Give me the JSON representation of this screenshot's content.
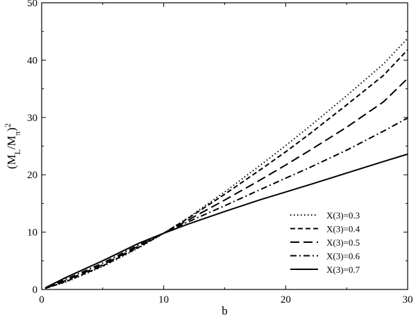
{
  "chart_data": {
    "type": "line",
    "xlabel": "b",
    "ylabel_parts": {
      "open": "(M",
      "sub1": "L",
      "mid": "/M",
      "sub2": "π",
      "close": ")",
      "sup": "2"
    },
    "xlim": [
      0,
      30
    ],
    "ylim": [
      0,
      50
    ],
    "xticks": [
      0,
      10,
      20,
      30
    ],
    "yticks": [
      0,
      10,
      20,
      30,
      40,
      50
    ],
    "grid": false,
    "legend_position": "bottom-right",
    "series": [
      {
        "name": "X(3)=0.3",
        "dash": "dotted",
        "x": [
          0.3,
          2,
          5,
          8,
          10,
          12,
          15,
          18,
          20,
          22,
          25,
          28,
          30
        ],
        "y": [
          0.2,
          1.3,
          4.0,
          7.3,
          9.8,
          12.5,
          17.0,
          21.8,
          25.1,
          28.5,
          33.8,
          39.3,
          43.8
        ]
      },
      {
        "name": "X(3)=0.4",
        "dash": "dashed",
        "x": [
          0.3,
          2,
          5,
          8,
          10,
          12,
          15,
          18,
          20,
          22,
          25,
          28,
          30
        ],
        "y": [
          0.2,
          1.4,
          4.1,
          7.4,
          9.8,
          12.4,
          16.6,
          21.0,
          24.0,
          27.2,
          32.2,
          37.3,
          41.8
        ]
      },
      {
        "name": "X(3)=0.5",
        "dash": "long-dashed",
        "x": [
          0.3,
          2,
          5,
          8,
          10,
          12,
          15,
          18,
          20,
          22,
          25,
          28,
          30
        ],
        "y": [
          0.2,
          1.6,
          4.3,
          7.6,
          9.8,
          12.1,
          15.6,
          19.2,
          21.7,
          24.3,
          28.3,
          32.7,
          36.8
        ]
      },
      {
        "name": "X(3)=0.6",
        "dash": "dash-dot",
        "x": [
          0.3,
          2,
          5,
          8,
          10,
          12,
          15,
          18,
          20,
          22,
          25,
          28,
          30
        ],
        "y": [
          0.2,
          1.8,
          4.6,
          7.8,
          9.8,
          11.8,
          14.6,
          17.5,
          19.4,
          21.3,
          24.3,
          27.6,
          29.9
        ]
      },
      {
        "name": "X(3)=0.7",
        "dash": "solid",
        "x": [
          0.3,
          2,
          5,
          8,
          10,
          12,
          15,
          18,
          20,
          22,
          25,
          28,
          30
        ],
        "y": [
          0.3,
          2.1,
          5.0,
          8.1,
          9.8,
          11.4,
          13.6,
          15.7,
          17.0,
          18.3,
          20.3,
          22.3,
          23.6
        ]
      }
    ]
  }
}
